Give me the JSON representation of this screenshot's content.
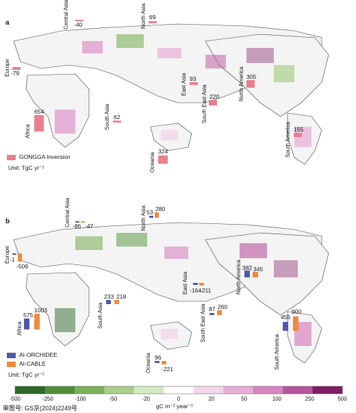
{
  "panels": [
    {
      "label": "a",
      "regions": [
        {
          "name": "Central Asia",
          "value": "-40"
        },
        {
          "name": "North Asia",
          "value": "69"
        },
        {
          "name": "Europe",
          "value": "-79"
        },
        {
          "name": "Africa",
          "value": "654"
        },
        {
          "name": "East Asia",
          "value": "93"
        },
        {
          "name": "South East Asia",
          "value": "220"
        },
        {
          "name": "North America",
          "value": "305"
        },
        {
          "name": "South Asia",
          "value": "62"
        },
        {
          "name": "Oceania",
          "value": "324"
        },
        {
          "name": "South America",
          "value": "155"
        }
      ],
      "legend": [
        {
          "label": "GONGGA Inversion",
          "color": "#e8808e"
        }
      ],
      "unit": "Unit: TgC yr⁻¹"
    },
    {
      "label": "b",
      "regions": [
        {
          "name": "Central Asia",
          "values": [
            "-86",
            "-47"
          ]
        },
        {
          "name": "North Asia",
          "values": [
            "53",
            "280"
          ]
        },
        {
          "name": "Europe",
          "values": [
            "-1",
            "-509"
          ]
        },
        {
          "name": "Africa",
          "values": [
            "575",
            "1003"
          ]
        },
        {
          "name": "South Asia",
          "values": [
            "233",
            "218"
          ]
        },
        {
          "name": "East Asia",
          "values": [
            "-164",
            "-211"
          ]
        },
        {
          "name": "South East Asia",
          "values": [
            "87",
            "260"
          ]
        },
        {
          "name": "North America",
          "values": [
            "382",
            "345"
          ]
        },
        {
          "name": "South America",
          "values": [
            "455",
            "900"
          ]
        },
        {
          "name": "Oceania",
          "values": [
            "96",
            "-221"
          ]
        }
      ],
      "legend": [
        {
          "label": "AI-ORCHIDEE",
          "color": "#4a5aa8"
        },
        {
          "label": "AI-CABLE",
          "color": "#f08a3c"
        }
      ],
      "unit": "Unit: TgC yr⁻¹"
    }
  ],
  "colorbar": {
    "ticks": [
      "-500",
      "-250",
      "-100",
      "-50",
      "-20",
      "0",
      "20",
      "50",
      "100",
      "250",
      "500"
    ],
    "colors": [
      "#2d6a2a",
      "#4f8f3a",
      "#7db05a",
      "#a9cf8a",
      "#d3e9c1",
      "#ffffff",
      "#f3d6ea",
      "#e7aed6",
      "#d784c0",
      "#b9539d",
      "#7e1e63"
    ],
    "title": "gC m⁻² year⁻¹"
  },
  "review_number": "审图号: GS京(2024)2249号"
}
